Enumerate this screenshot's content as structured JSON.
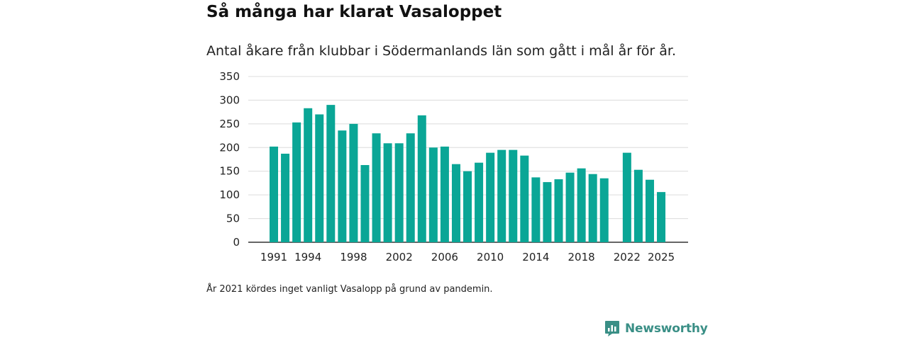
{
  "chart_data": {
    "type": "bar",
    "title": "Så många har klarat Vasaloppet",
    "subtitle": "Antal åkare från klubbar i Södermanlands län som gått i mål år för år.",
    "xlabel": "",
    "ylabel": "",
    "ylim": [
      0,
      350
    ],
    "yticks": [
      0,
      50,
      100,
      150,
      200,
      250,
      300,
      350
    ],
    "xticks": [
      1991,
      1994,
      1998,
      2002,
      2006,
      2010,
      2014,
      2018,
      2022,
      2025
    ],
    "grid": true,
    "bar_color": "#0aa696",
    "categories": [
      1991,
      1992,
      1993,
      1994,
      1995,
      1996,
      1997,
      1998,
      1999,
      2000,
      2001,
      2002,
      2003,
      2004,
      2005,
      2006,
      2007,
      2008,
      2009,
      2010,
      2011,
      2012,
      2013,
      2014,
      2015,
      2016,
      2017,
      2018,
      2019,
      2020,
      2021,
      2022,
      2023,
      2024,
      2025
    ],
    "values": [
      202,
      187,
      253,
      283,
      270,
      290,
      236,
      250,
      163,
      230,
      209,
      209,
      230,
      268,
      200,
      202,
      165,
      150,
      168,
      189,
      195,
      195,
      183,
      137,
      127,
      133,
      147,
      156,
      144,
      135,
      null,
      189,
      153,
      132,
      106
    ]
  },
  "note": "År 2021 kördes inget vanligt Vasalopp på grund av pandemin.",
  "brand": {
    "name": "Newsworthy",
    "color": "#3a8f86",
    "icon": "newsworthy-logo-icon"
  }
}
